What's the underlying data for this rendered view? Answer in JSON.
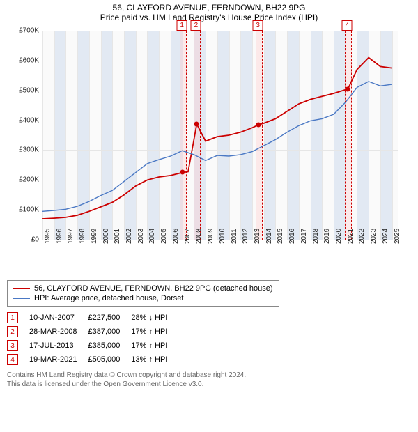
{
  "title": "56, CLAYFORD AVENUE, FERNDOWN, BH22 9PG",
  "subtitle": "Price paid vs. HM Land Registry's House Price Index (HPI)",
  "chart": {
    "type": "line",
    "background": "#fafafa",
    "grid_color": "#e6e6e6",
    "xlim": [
      1995,
      2025.5
    ],
    "ylim": [
      0,
      700000
    ],
    "y_ticks": [
      0,
      100000,
      200000,
      300000,
      400000,
      500000,
      600000,
      700000
    ],
    "y_tick_labels": [
      "£0",
      "£100K",
      "£200K",
      "£300K",
      "£400K",
      "£500K",
      "£600K",
      "£700K"
    ],
    "x_ticks": [
      1995,
      1996,
      1997,
      1998,
      1999,
      2000,
      2001,
      2002,
      2003,
      2004,
      2005,
      2006,
      2007,
      2008,
      2009,
      2010,
      2011,
      2012,
      2013,
      2014,
      2015,
      2016,
      2017,
      2018,
      2019,
      2020,
      2021,
      2022,
      2023,
      2024,
      2025
    ],
    "label_fontsize": 10,
    "alt_shade_color": "rgba(180,200,230,0.35)",
    "series": [
      {
        "name": "56, CLAYFORD AVENUE, FERNDOWN, BH22 9PG (detached house)",
        "color": "#cc0000",
        "width": 1.8,
        "points": [
          [
            1995,
            70000
          ],
          [
            1996,
            72000
          ],
          [
            1997,
            75000
          ],
          [
            1998,
            82000
          ],
          [
            1999,
            95000
          ],
          [
            2000,
            110000
          ],
          [
            2001,
            125000
          ],
          [
            2002,
            150000
          ],
          [
            2003,
            180000
          ],
          [
            2004,
            200000
          ],
          [
            2005,
            210000
          ],
          [
            2006,
            215000
          ],
          [
            2007,
            225000
          ],
          [
            2007.5,
            227500
          ],
          [
            2008.24,
            387000
          ],
          [
            2009,
            330000
          ],
          [
            2010,
            345000
          ],
          [
            2011,
            350000
          ],
          [
            2012,
            360000
          ],
          [
            2013,
            375000
          ],
          [
            2013.55,
            385000
          ],
          [
            2014,
            390000
          ],
          [
            2015,
            405000
          ],
          [
            2016,
            430000
          ],
          [
            2017,
            455000
          ],
          [
            2018,
            470000
          ],
          [
            2019,
            480000
          ],
          [
            2020,
            490000
          ],
          [
            2021.22,
            505000
          ],
          [
            2022,
            570000
          ],
          [
            2023,
            610000
          ],
          [
            2024,
            580000
          ],
          [
            2025,
            575000
          ]
        ]
      },
      {
        "name": "HPI: Average price, detached house, Dorset",
        "color": "#4a78c4",
        "width": 1.4,
        "points": [
          [
            1995,
            95000
          ],
          [
            1996,
            98000
          ],
          [
            1997,
            102000
          ],
          [
            1998,
            112000
          ],
          [
            1999,
            128000
          ],
          [
            2000,
            148000
          ],
          [
            2001,
            165000
          ],
          [
            2002,
            195000
          ],
          [
            2003,
            225000
          ],
          [
            2004,
            255000
          ],
          [
            2005,
            268000
          ],
          [
            2006,
            280000
          ],
          [
            2007,
            298000
          ],
          [
            2008,
            285000
          ],
          [
            2009,
            265000
          ],
          [
            2010,
            282000
          ],
          [
            2011,
            280000
          ],
          [
            2012,
            285000
          ],
          [
            2013,
            295000
          ],
          [
            2014,
            315000
          ],
          [
            2015,
            335000
          ],
          [
            2016,
            360000
          ],
          [
            2017,
            382000
          ],
          [
            2018,
            398000
          ],
          [
            2019,
            405000
          ],
          [
            2020,
            420000
          ],
          [
            2021,
            460000
          ],
          [
            2022,
            510000
          ],
          [
            2023,
            530000
          ],
          [
            2024,
            515000
          ],
          [
            2025,
            520000
          ]
        ]
      }
    ],
    "sale_bands": [
      {
        "n": "1",
        "x": 2007.03
      },
      {
        "n": "2",
        "x": 2008.24
      },
      {
        "n": "3",
        "x": 2013.55
      },
      {
        "n": "4",
        "x": 2021.22
      }
    ],
    "sale_dots": [
      [
        2007.03,
        227500
      ],
      [
        2008.24,
        387000
      ],
      [
        2013.55,
        385000
      ],
      [
        2021.21,
        505000
      ]
    ]
  },
  "legend": [
    {
      "color": "#cc0000",
      "label": "56, CLAYFORD AVENUE, FERNDOWN, BH22 9PG (detached house)"
    },
    {
      "color": "#4a78c4",
      "label": "HPI: Average price, detached house, Dorset"
    }
  ],
  "trades": [
    {
      "n": "1",
      "date": "10-JAN-2007",
      "price": "£227,500",
      "delta": "28% ↓ HPI"
    },
    {
      "n": "2",
      "date": "28-MAR-2008",
      "price": "£387,000",
      "delta": "17% ↑ HPI"
    },
    {
      "n": "3",
      "date": "17-JUL-2013",
      "price": "£385,000",
      "delta": "17% ↑ HPI"
    },
    {
      "n": "4",
      "date": "19-MAR-2021",
      "price": "£505,000",
      "delta": "13% ↑ HPI"
    }
  ],
  "footer": {
    "line1": "Contains HM Land Registry data © Crown copyright and database right 2024.",
    "line2": "This data is licensed under the Open Government Licence v3.0."
  }
}
